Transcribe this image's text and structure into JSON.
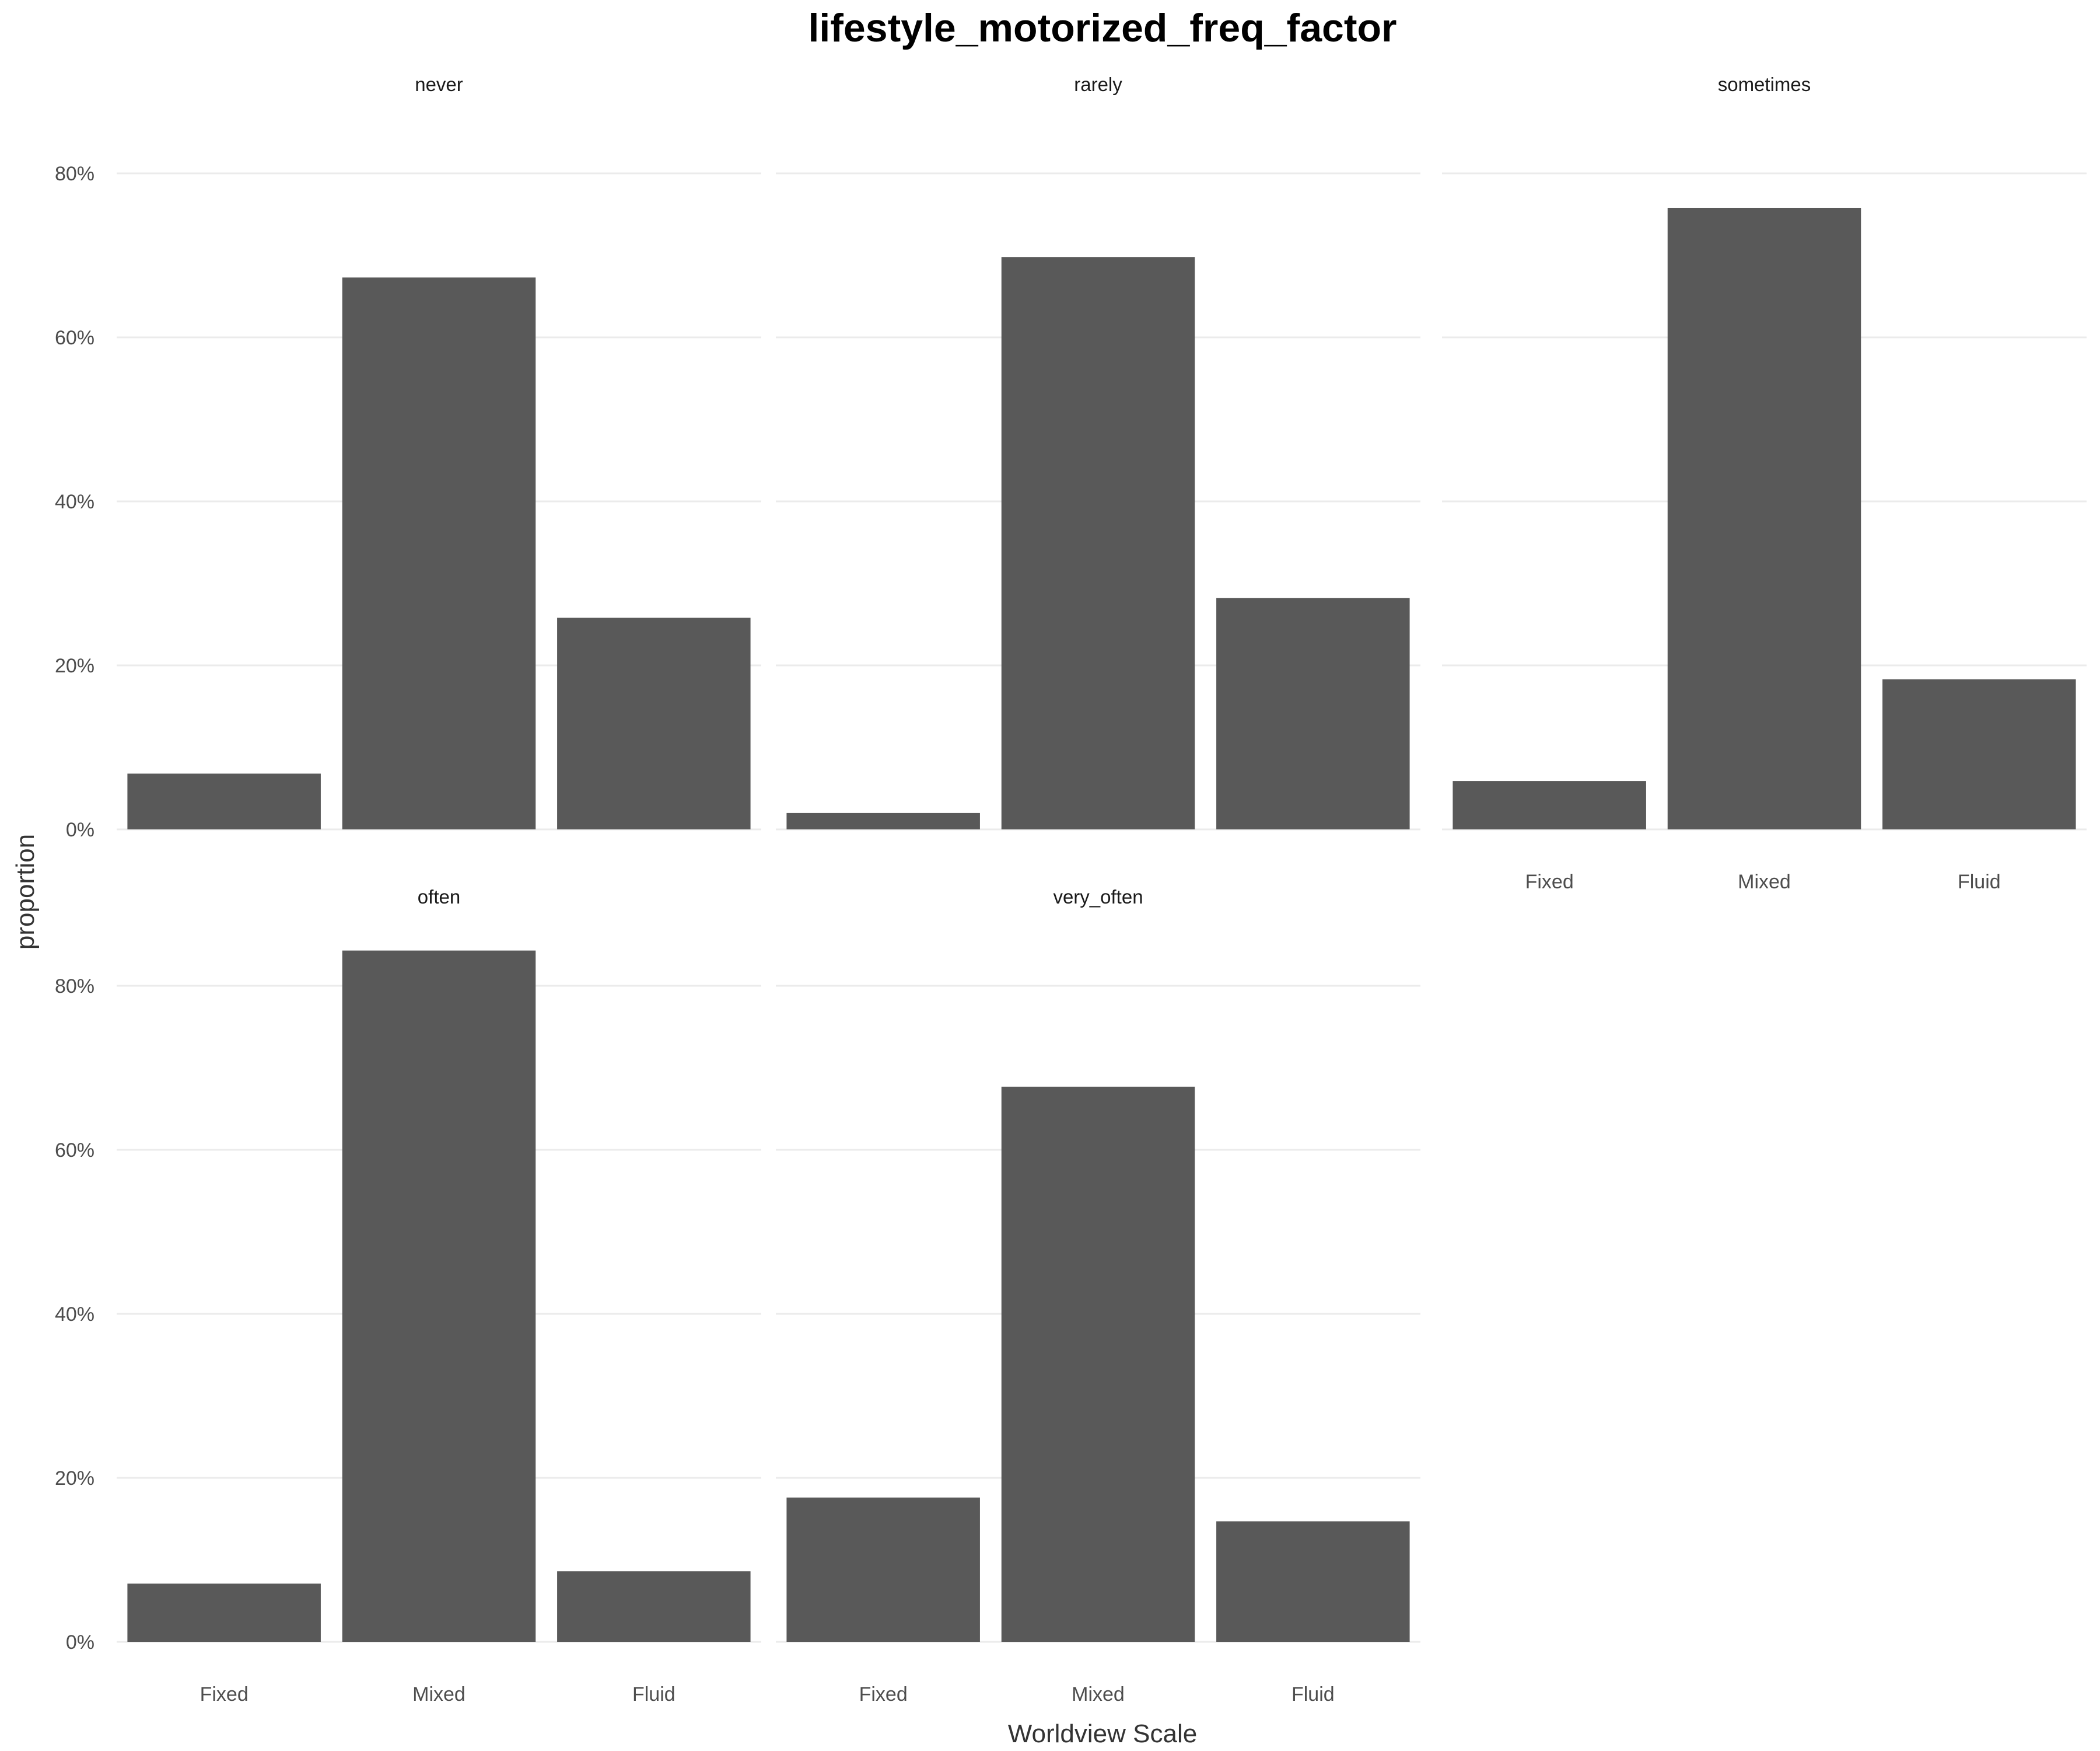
{
  "chart_data": {
    "type": "bar",
    "title": "lifestyle_motorized_freq_factor",
    "xlabel": "Worldview Scale",
    "ylabel": "proportion",
    "categories": [
      "Fixed",
      "Mixed",
      "Fluid"
    ],
    "y_ticks": [
      0,
      20,
      40,
      60,
      80
    ],
    "y_tick_labels": [
      "0%",
      "20%",
      "40%",
      "60%",
      "80%"
    ],
    "ylim": [
      0,
      85
    ],
    "bar_color": "#595959",
    "grid_color": "#ebebeb",
    "facets": [
      {
        "name": "never",
        "values": [
          6.8,
          67.3,
          25.8
        ]
      },
      {
        "name": "rarely",
        "values": [
          2.0,
          69.8,
          28.2
        ]
      },
      {
        "name": "sometimes",
        "values": [
          5.9,
          75.8,
          18.3
        ]
      },
      {
        "name": "often",
        "values": [
          7.1,
          84.3,
          8.6
        ]
      },
      {
        "name": "very_often",
        "values": [
          17.6,
          67.7,
          14.7
        ]
      }
    ]
  }
}
